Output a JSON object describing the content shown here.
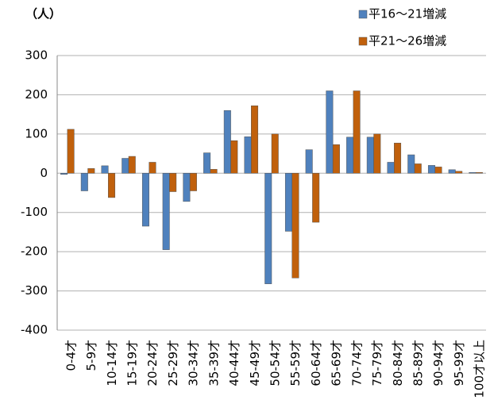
{
  "chart_data": {
    "type": "bar",
    "y_label": "（人）",
    "categories": [
      "0-4才",
      "5-9才",
      "10-14才",
      "15-19才",
      "20-24才",
      "25-29才",
      "30-34才",
      "35-39才",
      "40-44才",
      "45-49才",
      "50-54才",
      "55-59才",
      "60-64才",
      "65-69才",
      "70-74才",
      "75-79才",
      "80-84才",
      "85-89才",
      "90-94才",
      "95-99才",
      "100才以上"
    ],
    "series": [
      {
        "name": "平16～21増減",
        "color": "#4f81bd",
        "values": [
          -3,
          -45,
          19,
          38,
          -135,
          -195,
          -72,
          52,
          160,
          93,
          -282,
          -148,
          60,
          210,
          92,
          92,
          28,
          47,
          20,
          9,
          2
        ]
      },
      {
        "name": "平21～26増減",
        "color": "#c0600c",
        "values": [
          112,
          12,
          -62,
          43,
          28,
          -47,
          -45,
          10,
          83,
          172,
          100,
          -267,
          -125,
          73,
          210,
          100,
          77,
          24,
          16,
          5,
          2
        ]
      }
    ],
    "ylim": [
      -400,
      300
    ],
    "yticks": [
      -400,
      -300,
      -200,
      -100,
      0,
      100,
      200,
      300
    ],
    "negative_tick_color": "#ff0000",
    "grid": true,
    "legend": "top-right"
  }
}
